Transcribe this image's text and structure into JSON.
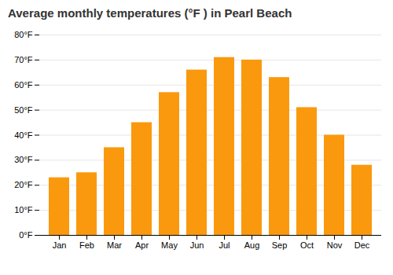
{
  "chart_data": {
    "type": "bar",
    "title": "Average monthly temperatures (°F ) in Pearl Beach",
    "categories": [
      "Jan",
      "Feb",
      "Mar",
      "Apr",
      "May",
      "Jun",
      "Jul",
      "Aug",
      "Sep",
      "Oct",
      "Nov",
      "Dec"
    ],
    "values": [
      23,
      25,
      35,
      45,
      57,
      66,
      71,
      70,
      63,
      51,
      40,
      28
    ],
    "color": "#fa990d",
    "ylim": [
      0,
      80
    ],
    "yticks": [
      {
        "value": 0,
        "label": "0°F"
      },
      {
        "value": 10,
        "label": "10°F"
      },
      {
        "value": 20,
        "label": "20°F"
      },
      {
        "value": 30,
        "label": "30°F"
      },
      {
        "value": 40,
        "label": "40°F"
      },
      {
        "value": 50,
        "label": "50°F"
      },
      {
        "value": 60,
        "label": "60°F"
      },
      {
        "value": 70,
        "label": "70°F"
      },
      {
        "value": 80,
        "label": "80°F"
      }
    ],
    "grid": true
  }
}
